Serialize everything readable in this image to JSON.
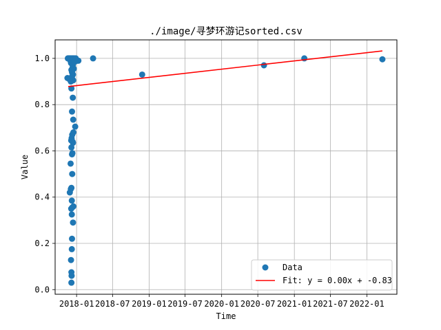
{
  "chart_data": {
    "type": "scatter",
    "title": "./image/寻梦环游记sorted.csv",
    "xlabel": "Time",
    "ylabel": "Value",
    "x_axis_type": "date",
    "xlim": [
      "2017-09-15",
      "2022-06-01"
    ],
    "ylim": [
      -0.02,
      1.08
    ],
    "x_ticks": [
      "2018-01",
      "2018-07",
      "2019-01",
      "2019-07",
      "2020-01",
      "2020-07",
      "2021-01",
      "2021-07",
      "2022-01"
    ],
    "y_ticks": [
      0.0,
      0.2,
      0.4,
      0.6,
      0.8,
      1.0
    ],
    "y_tick_labels": [
      "0.0",
      "0.2",
      "0.4",
      "0.6",
      "0.8",
      "1.0"
    ],
    "grid": true,
    "legend_position": "lower-right",
    "series": [
      {
        "name": "Data",
        "kind": "scatter",
        "color": "#1f77b4",
        "points": [
          {
            "x": "2017-11-18",
            "y": 1.0
          },
          {
            "x": "2017-11-20",
            "y": 1.0
          },
          {
            "x": "2017-11-22",
            "y": 1.0
          },
          {
            "x": "2017-11-25",
            "y": 1.0
          },
          {
            "x": "2017-11-27",
            "y": 1.0
          },
          {
            "x": "2017-11-29",
            "y": 1.0
          },
          {
            "x": "2017-12-02",
            "y": 1.0
          },
          {
            "x": "2017-12-05",
            "y": 1.0
          },
          {
            "x": "2017-12-08",
            "y": 1.0
          },
          {
            "x": "2017-12-11",
            "y": 1.0
          },
          {
            "x": "2017-12-14",
            "y": 1.0
          },
          {
            "x": "2017-12-17",
            "y": 1.0
          },
          {
            "x": "2017-12-20",
            "y": 1.0
          },
          {
            "x": "2017-12-24",
            "y": 1.0
          },
          {
            "x": "2017-12-28",
            "y": 1.0
          },
          {
            "x": "2018-01-02",
            "y": 0.99
          },
          {
            "x": "2018-01-06",
            "y": 0.99
          },
          {
            "x": "2018-01-10",
            "y": 0.99
          },
          {
            "x": "2017-12-01",
            "y": 0.99
          },
          {
            "x": "2017-12-04",
            "y": 0.98
          },
          {
            "x": "2017-12-07",
            "y": 0.98
          },
          {
            "x": "2017-12-10",
            "y": 0.975
          },
          {
            "x": "2017-12-13",
            "y": 0.97
          },
          {
            "x": "2017-12-16",
            "y": 0.98
          },
          {
            "x": "2017-12-22",
            "y": 0.985
          },
          {
            "x": "2017-12-12",
            "y": 0.96
          },
          {
            "x": "2017-12-18",
            "y": 0.955
          },
          {
            "x": "2017-12-06",
            "y": 0.95
          },
          {
            "x": "2017-12-09",
            "y": 0.94
          },
          {
            "x": "2017-12-14",
            "y": 0.93
          },
          {
            "x": "2017-12-08",
            "y": 0.92
          },
          {
            "x": "2017-12-11",
            "y": 0.91
          },
          {
            "x": "2017-11-16",
            "y": 0.915
          },
          {
            "x": "2017-11-26",
            "y": 0.91
          },
          {
            "x": "2017-12-15",
            "y": 0.905
          },
          {
            "x": "2017-12-03",
            "y": 0.9
          },
          {
            "x": "2017-12-06",
            "y": 0.87
          },
          {
            "x": "2017-12-13",
            "y": 0.83
          },
          {
            "x": "2017-12-09",
            "y": 0.77
          },
          {
            "x": "2017-12-15",
            "y": 0.735
          },
          {
            "x": "2017-12-25",
            "y": 0.705
          },
          {
            "x": "2017-12-16",
            "y": 0.68
          },
          {
            "x": "2017-12-10",
            "y": 0.67
          },
          {
            "x": "2017-12-07",
            "y": 0.655
          },
          {
            "x": "2017-12-05",
            "y": 0.645
          },
          {
            "x": "2017-12-12",
            "y": 0.64
          },
          {
            "x": "2017-12-14",
            "y": 0.635
          },
          {
            "x": "2017-12-06",
            "y": 0.615
          },
          {
            "x": "2017-12-11",
            "y": 0.59
          },
          {
            "x": "2017-12-09",
            "y": 0.585
          },
          {
            "x": "2017-12-02",
            "y": 0.545
          },
          {
            "x": "2017-12-10",
            "y": 0.5
          },
          {
            "x": "2017-12-06",
            "y": 0.44
          },
          {
            "x": "2017-12-03",
            "y": 0.435
          },
          {
            "x": "2017-11-28",
            "y": 0.42
          },
          {
            "x": "2017-12-08",
            "y": 0.385
          },
          {
            "x": "2017-12-16",
            "y": 0.36
          },
          {
            "x": "2017-12-05",
            "y": 0.35
          },
          {
            "x": "2017-12-10",
            "y": 0.355
          },
          {
            "x": "2017-12-08",
            "y": 0.325
          },
          {
            "x": "2017-12-14",
            "y": 0.29
          },
          {
            "x": "2017-12-09",
            "y": 0.22
          },
          {
            "x": "2017-12-08",
            "y": 0.175
          },
          {
            "x": "2017-12-04",
            "y": 0.128
          },
          {
            "x": "2017-12-06",
            "y": 0.075
          },
          {
            "x": "2017-12-07",
            "y": 0.06
          },
          {
            "x": "2017-12-06",
            "y": 0.03
          },
          {
            "x": "2018-03-25",
            "y": 1.0
          },
          {
            "x": "2018-11-27",
            "y": 0.93
          },
          {
            "x": "2020-08-01",
            "y": 0.97
          },
          {
            "x": "2021-02-20",
            "y": 1.0
          },
          {
            "x": "2022-03-20",
            "y": 0.996
          }
        ]
      },
      {
        "name": "Fit: y = 0.00x + -0.83",
        "kind": "line",
        "color": "#ff0000",
        "points": [
          {
            "x": "2017-11-20",
            "y": 0.878
          },
          {
            "x": "2022-03-20",
            "y": 1.032
          }
        ]
      }
    ]
  }
}
